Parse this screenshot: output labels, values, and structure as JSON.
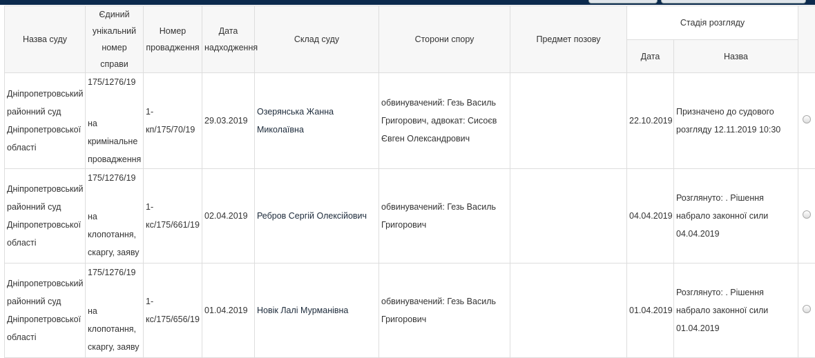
{
  "headers": {
    "court": "Назва суду",
    "case_number": "Єдиний унікальний номер справи",
    "proceeding_number": "Номер провадження",
    "received_date": "Дата надходження",
    "court_panel": "Склад суду",
    "parties": "Сторони спору",
    "subject": "Предмет позову",
    "stage": "Стадія розгляду",
    "stage_date": "Дата",
    "stage_name": "Назва"
  },
  "rows": [
    {
      "court": "Дніпропетровський районний суд Дніпропетровської області",
      "case_number": "175/1276/19",
      "case_type": "на кримінальне провадження",
      "proceeding_number": "1-кп/175/70/19",
      "received_date": "29.03.2019",
      "court_panel": "Озерянська Жанна Миколаївна",
      "parties": "обвинувачений: Гезь Василь Григорович, адвокат: Сисоєв Євген Олександрович",
      "subject": "",
      "stage_date": "22.10.2019",
      "stage_name": "Призначено до судового розгляду 12.11.2019 10:30"
    },
    {
      "court": "Дніпропетровський районний суд Дніпропетровської області",
      "case_number": "175/1276/19",
      "case_type": "на клопотання, скаргу, заяву",
      "proceeding_number": "1-кс/175/661/19",
      "received_date": "02.04.2019",
      "court_panel": "Ребров Сергій Олексійович",
      "parties": "обвинувачений: Гезь Василь Григорович",
      "subject": "",
      "stage_date": "04.04.2019",
      "stage_name": "Розглянуто: . Рішення набрало законної сили 04.04.2019"
    },
    {
      "court": "Дніпропетровський районний суд Дніпропетровської області",
      "case_number": "175/1276/19",
      "case_type": "на клопотання, скаргу, заяву",
      "proceeding_number": "1-кс/175/656/19",
      "received_date": "01.04.2019",
      "court_panel": "Новік Лалі Мурманівна",
      "parties": "обвинувачений: Гезь Василь Григорович",
      "subject": "",
      "stage_date": "01.04.2019",
      "stage_name": "Розглянуто: . Рішення набрало законної сили 01.04.2019"
    }
  ]
}
